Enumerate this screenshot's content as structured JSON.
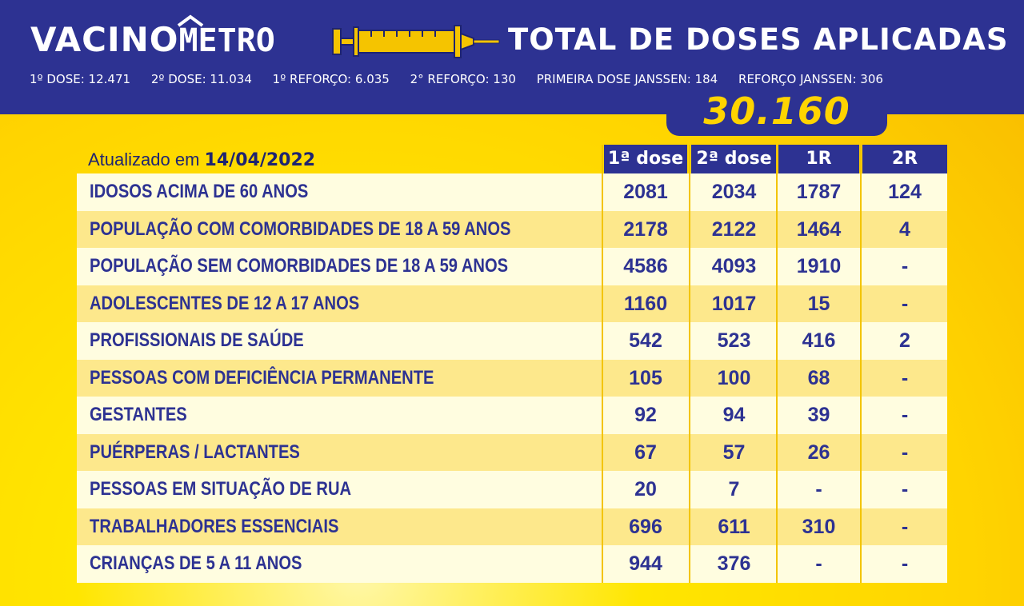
{
  "header": {
    "logo_prefix": "VACINO",
    "logo_suffix": "METRO",
    "title": "TOTAL DE DOSES APLICADAS",
    "stats": [
      "1º DOSE: 12.471",
      "2º DOSE: 11.034",
      "1º REFORÇO: 6.035",
      "2° REFORÇO: 130",
      "PRIMEIRA DOSE JANSSEN: 184",
      "REFORÇO JANSSEN: 306"
    ],
    "total": "30.160"
  },
  "table": {
    "updated_label": "Atualizado em",
    "updated_date": "14/04/2022",
    "columns": [
      "1ª dose",
      "2ª dose",
      "1R",
      "2R"
    ],
    "rows": [
      {
        "group": "IDOSOS ACIMA DE 60 ANOS",
        "d1": "2081",
        "d2": "2034",
        "r1": "1787",
        "r2": "124"
      },
      {
        "group": "POPULAÇÃO COM COMORBIDADES DE 18 A 59 ANOS",
        "d1": "2178",
        "d2": "2122",
        "r1": "1464",
        "r2": "4"
      },
      {
        "group": "POPULAÇÃO SEM COMORBIDADES DE 18 A 59 ANOS",
        "d1": "4586",
        "d2": "4093",
        "r1": "1910",
        "r2": "-"
      },
      {
        "group": "ADOLESCENTES DE 12 A 17 ANOS",
        "d1": "1160",
        "d2": "1017",
        "r1": "15",
        "r2": "-"
      },
      {
        "group": "PROFISSIONAIS DE SAÚDE",
        "d1": "542",
        "d2": "523",
        "r1": "416",
        "r2": "2"
      },
      {
        "group": "PESSOAS COM DEFICIÊNCIA PERMANENTE",
        "d1": "105",
        "d2": "100",
        "r1": "68",
        "r2": "-"
      },
      {
        "group": "GESTANTES",
        "d1": "92",
        "d2": "94",
        "r1": "39",
        "r2": "-"
      },
      {
        "group": "PUÉRPERAS / LACTANTES",
        "d1": "67",
        "d2": "57",
        "r1": "26",
        "r2": "-"
      },
      {
        "group": "PESSOAS EM SITUAÇÃO DE RUA",
        "d1": "20",
        "d2": "7",
        "r1": "-",
        "r2": "-"
      },
      {
        "group": "TRABALHADORES ESSENCIAIS",
        "d1": "696",
        "d2": "611",
        "r1": "310",
        "r2": "-"
      },
      {
        "group": "CRIANÇAS DE 5 A 11 ANOS",
        "d1": "944",
        "d2": "376",
        "r1": "-",
        "r2": "-"
      }
    ]
  },
  "colors": {
    "navy": "#2d3292",
    "yellow": "#ffd400",
    "row_light": "#fffde0",
    "row_dark": "#fde88c"
  },
  "icons": [
    "syringe-icon",
    "house-roof-icon"
  ]
}
